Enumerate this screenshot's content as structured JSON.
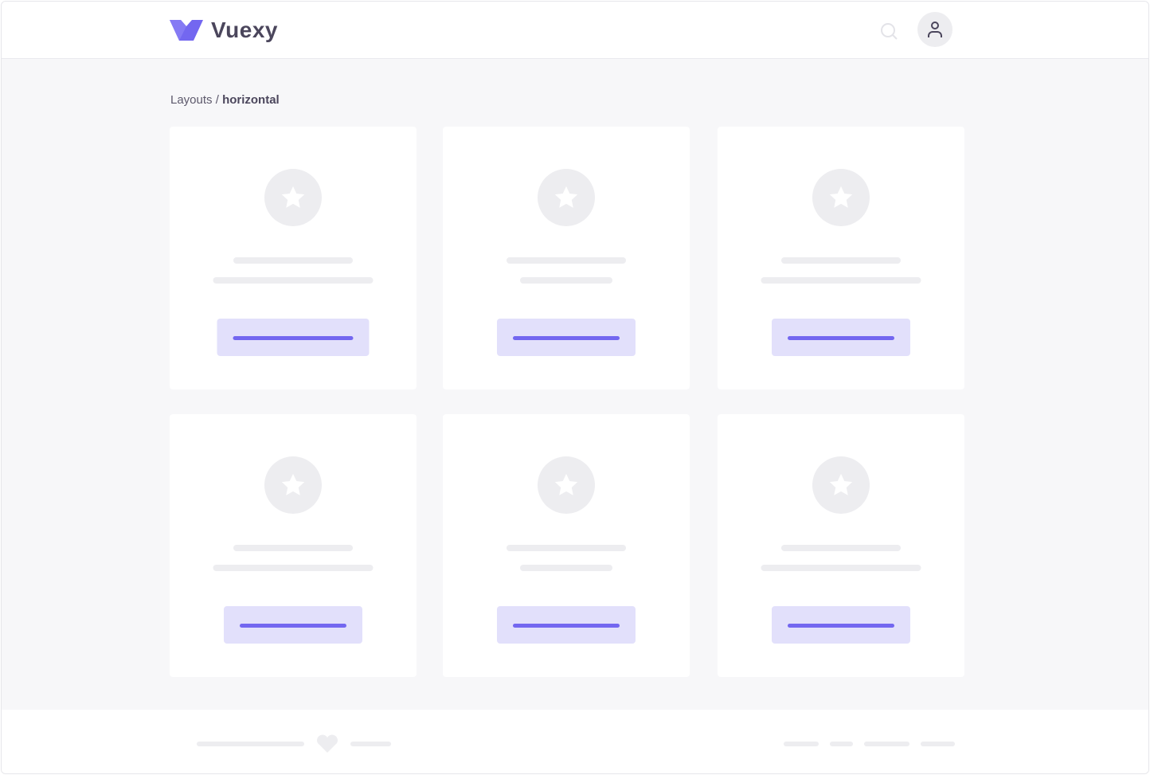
{
  "header": {
    "brand": "Vuexy",
    "logo_color": "#7367f0",
    "search_icon": "search-icon",
    "avatar_icon": "user-icon"
  },
  "breadcrumb": {
    "parent": "Layouts",
    "separator": "/",
    "current": "horizontal"
  },
  "cards": [
    {
      "icon": "star"
    },
    {
      "icon": "star"
    },
    {
      "icon": "star"
    },
    {
      "icon": "star"
    },
    {
      "icon": "star"
    },
    {
      "icon": "star"
    }
  ],
  "colors": {
    "accent": "#7367f0",
    "accent_light": "#e2e0fb",
    "placeholder": "#ededf0",
    "background": "#f7f7f9"
  },
  "footer": {
    "icon": "heart-icon"
  }
}
